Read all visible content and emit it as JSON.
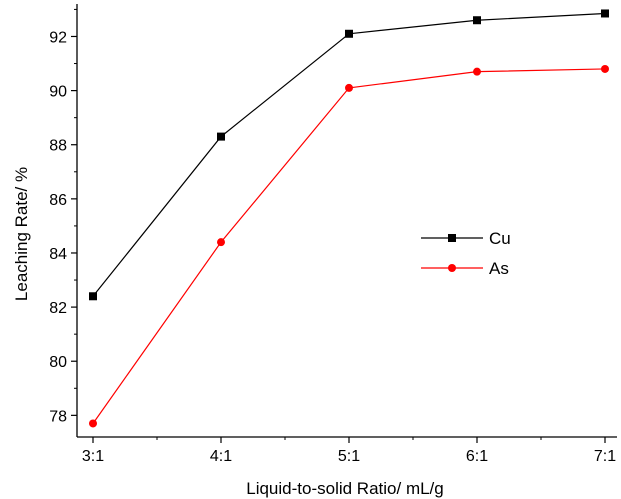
{
  "chart_data": {
    "type": "line",
    "title": "",
    "xlabel": "Liquid-to-solid Ratio/  mL/g",
    "ylabel": "Leaching Rate/ %",
    "categories": [
      "3:1",
      "4:1",
      "5:1",
      "6:1",
      "7:1"
    ],
    "ylim": [
      77.2,
      93.2
    ],
    "yticks": [
      78,
      80,
      82,
      84,
      86,
      88,
      90,
      92
    ],
    "grid": false,
    "legend_position": "center-right",
    "series": [
      {
        "name": "Cu",
        "values": [
          82.4,
          88.3,
          92.1,
          92.6,
          92.85
        ],
        "color": "#000000",
        "marker": "square"
      },
      {
        "name": "As",
        "values": [
          77.7,
          84.4,
          90.1,
          90.7,
          90.8
        ],
        "color": "#ff0000",
        "marker": "circle"
      }
    ]
  }
}
